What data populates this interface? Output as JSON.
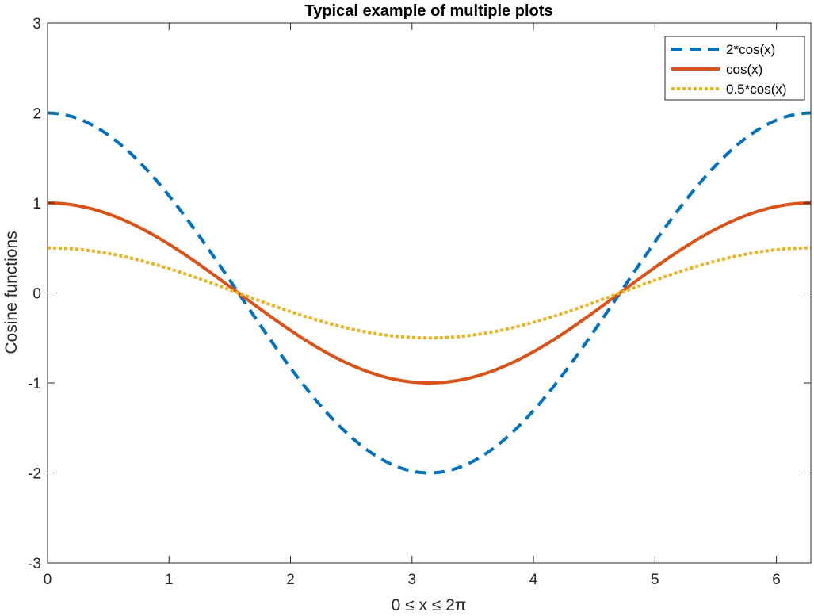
{
  "chart_data": {
    "type": "line",
    "title": "Typical example of multiple plots",
    "xlabel": "0 ≤ x ≤ 2π",
    "ylabel": "Cosine functions",
    "xlim": [
      0,
      6.2832
    ],
    "ylim": [
      -3,
      3
    ],
    "xticks": [
      0,
      1,
      2,
      3,
      4,
      5,
      6
    ],
    "yticks": [
      -3,
      -2,
      -1,
      0,
      1,
      2,
      3
    ],
    "xtick_labels": [
      "0",
      "1",
      "2",
      "3",
      "4",
      "5",
      "6"
    ],
    "ytick_labels": [
      "-3",
      "-2",
      "-1",
      "0",
      "1",
      "2",
      "3"
    ],
    "grid": false,
    "legend_position": "top-right",
    "x": [
      0,
      0.3142,
      0.6283,
      0.9425,
      1.2566,
      1.5708,
      1.885,
      2.1991,
      2.5133,
      2.8274,
      3.1416,
      3.4558,
      3.7699,
      4.0841,
      4.3982,
      4.7124,
      5.0265,
      5.3407,
      5.6549,
      5.969,
      6.2832
    ],
    "series": [
      {
        "name": "2*cos(x)",
        "color": "#0072bd",
        "style": "dashed",
        "values": [
          2,
          1.902,
          1.618,
          1.176,
          0.618,
          0,
          -0.618,
          -1.176,
          -1.618,
          -1.902,
          -2,
          -1.902,
          -1.618,
          -1.176,
          -0.618,
          0,
          0.618,
          1.176,
          1.618,
          1.902,
          2
        ]
      },
      {
        "name": "cos(x)",
        "color": "#d95319",
        "style": "solid",
        "values": [
          1,
          0.951,
          0.809,
          0.588,
          0.309,
          0,
          -0.309,
          -0.588,
          -0.809,
          -0.951,
          -1,
          -0.951,
          -0.809,
          -0.588,
          -0.309,
          0,
          0.309,
          0.588,
          0.809,
          0.951,
          1
        ]
      },
      {
        "name": "0.5*cos(x)",
        "color": "#edb120",
        "style": "dotted",
        "values": [
          0.5,
          0.476,
          0.405,
          0.294,
          0.155,
          0,
          -0.155,
          -0.294,
          -0.405,
          -0.476,
          -0.5,
          -0.476,
          -0.405,
          -0.294,
          -0.155,
          0,
          0.155,
          0.294,
          0.405,
          0.476,
          0.5
        ]
      }
    ]
  }
}
